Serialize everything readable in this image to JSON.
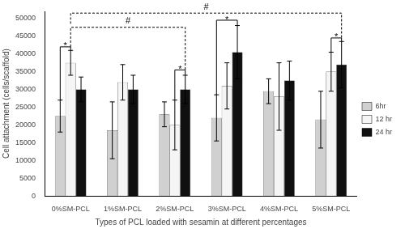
{
  "chart_data": {
    "type": "bar",
    "xlabel": "Types of PCL loaded with sesamin at different percentages",
    "ylabel": "Cell attachment (cells/scaffold)",
    "categories": [
      "0%SM-PCL",
      "1%SM-PCL",
      "2%SM-PCL",
      "3%SM-PCL",
      "4%SM-PCL",
      "5%SM-PCL"
    ],
    "series": [
      {
        "name": "6hr",
        "color": "#d0d0d0",
        "values": [
          22500,
          18500,
          23000,
          22000,
          29500,
          21500
        ],
        "errors": [
          4500,
          8000,
          3500,
          6500,
          3500,
          8000
        ]
      },
      {
        "name": "12 hr",
        "color": "#f5f5f5",
        "values": [
          37500,
          32000,
          20000,
          31000,
          28000,
          35000
        ],
        "errors": [
          3500,
          5000,
          7000,
          6500,
          9500,
          5500
        ]
      },
      {
        "name": "24 hr",
        "color": "#101010",
        "values": [
          30000,
          30000,
          30000,
          40500,
          32500,
          37000
        ],
        "errors": [
          3500,
          4000,
          4000,
          7500,
          5500,
          6500
        ]
      }
    ],
    "ylim": [
      0,
      52000
    ],
    "yticks": [
      0,
      5000,
      10000,
      15000,
      20000,
      25000,
      30000,
      35000,
      40000,
      45000,
      50000
    ],
    "grid": false,
    "legend": "right",
    "annotations": [
      {
        "text": "*",
        "line_style": "solid",
        "from": {
          "category": "0%SM-PCL",
          "series": "6hr"
        },
        "to": {
          "category": "0%SM-PCL",
          "series": "12 hr"
        },
        "y": 42000,
        "y_from": 27000,
        "y_to": 41000
      },
      {
        "text": "*",
        "line_style": "solid",
        "from": {
          "category": "2%SM-PCL",
          "series": "12 hr"
        },
        "to": {
          "category": "2%SM-PCL",
          "series": "24 hr"
        },
        "y": 35500,
        "y_from": 27000,
        "y_to": 34000
      },
      {
        "text": "*",
        "line_style": "solid",
        "from": {
          "category": "3%SM-PCL",
          "series": "6hr"
        },
        "to": {
          "category": "3%SM-PCL",
          "series": "24 hr"
        },
        "y": 49500,
        "y_from": 28500,
        "y_to": 48000
      },
      {
        "text": "*",
        "line_style": "solid",
        "from": {
          "category": "5%SM-PCL",
          "series": "12 hr"
        },
        "to": {
          "category": "5%SM-PCL",
          "series": "24 hr"
        },
        "y": 44500,
        "y_from": 40500,
        "y_to": 43500
      },
      {
        "text": "#",
        "line_style": "dashed",
        "from": {
          "category": "0%SM-PCL",
          "series": "12 hr"
        },
        "to": {
          "category": "2%SM-PCL",
          "series": "24 hr"
        },
        "y": 47500,
        "y_from": 42000,
        "y_to": 35500
      },
      {
        "text": "#",
        "line_style": "dashed",
        "from": {
          "category": "0%SM-PCL",
          "series": "12 hr"
        },
        "to": {
          "category": "5%SM-PCL",
          "series": "24 hr"
        },
        "y": 51500,
        "y_from": 48500,
        "y_to": 44500
      }
    ]
  }
}
